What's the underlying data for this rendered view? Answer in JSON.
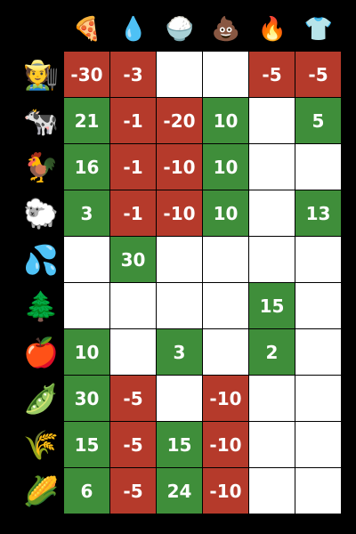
{
  "resources": [
    {
      "name": "pizza-icon",
      "glyph": "🍕"
    },
    {
      "name": "water-drop-icon",
      "glyph": "💧"
    },
    {
      "name": "rice-bowl-icon",
      "glyph": "🍚"
    },
    {
      "name": "poop-icon",
      "glyph": "💩"
    },
    {
      "name": "fire-icon",
      "glyph": "🔥"
    },
    {
      "name": "shirt-icon",
      "glyph": "👕"
    }
  ],
  "rows": [
    {
      "name": "farmer-icon",
      "glyph": "🧑‍🌾",
      "cells": [
        "-30",
        "-3",
        "",
        "",
        "-5",
        "-5"
      ]
    },
    {
      "name": "cow-icon",
      "glyph": "🐄",
      "cells": [
        "21",
        "-1",
        "-20",
        "10",
        "",
        "5"
      ]
    },
    {
      "name": "rooster-icon",
      "glyph": "🐓",
      "cells": [
        "16",
        "-1",
        "-10",
        "10",
        "",
        ""
      ]
    },
    {
      "name": "sheep-icon",
      "glyph": "🐑",
      "cells": [
        "3",
        "-1",
        "-10",
        "10",
        "",
        "13"
      ]
    },
    {
      "name": "water-droplets-icon",
      "glyph": "💦",
      "cells": [
        "",
        "30",
        "",
        "",
        "",
        ""
      ]
    },
    {
      "name": "trees-icon",
      "glyph": "🌲",
      "cells": [
        "",
        "",
        "",
        "",
        "15",
        ""
      ]
    },
    {
      "name": "apple-icon",
      "glyph": "🍎",
      "cells": [
        "10",
        "",
        "3",
        "",
        "2",
        ""
      ]
    },
    {
      "name": "peas-icon",
      "glyph": "🫛",
      "cells": [
        "30",
        "-5",
        "",
        "-10",
        "",
        ""
      ]
    },
    {
      "name": "wheat-icon",
      "glyph": "🌾",
      "cells": [
        "15",
        "-5",
        "15",
        "-10",
        "",
        ""
      ]
    },
    {
      "name": "corn-icon",
      "glyph": "🌽",
      "cells": [
        "6",
        "-5",
        "24",
        "-10",
        "",
        ""
      ]
    }
  ],
  "colors": {
    "positive": "#3f8e3a",
    "negative": "#b53a2b",
    "empty": "#ffffff",
    "background": "#000000"
  }
}
